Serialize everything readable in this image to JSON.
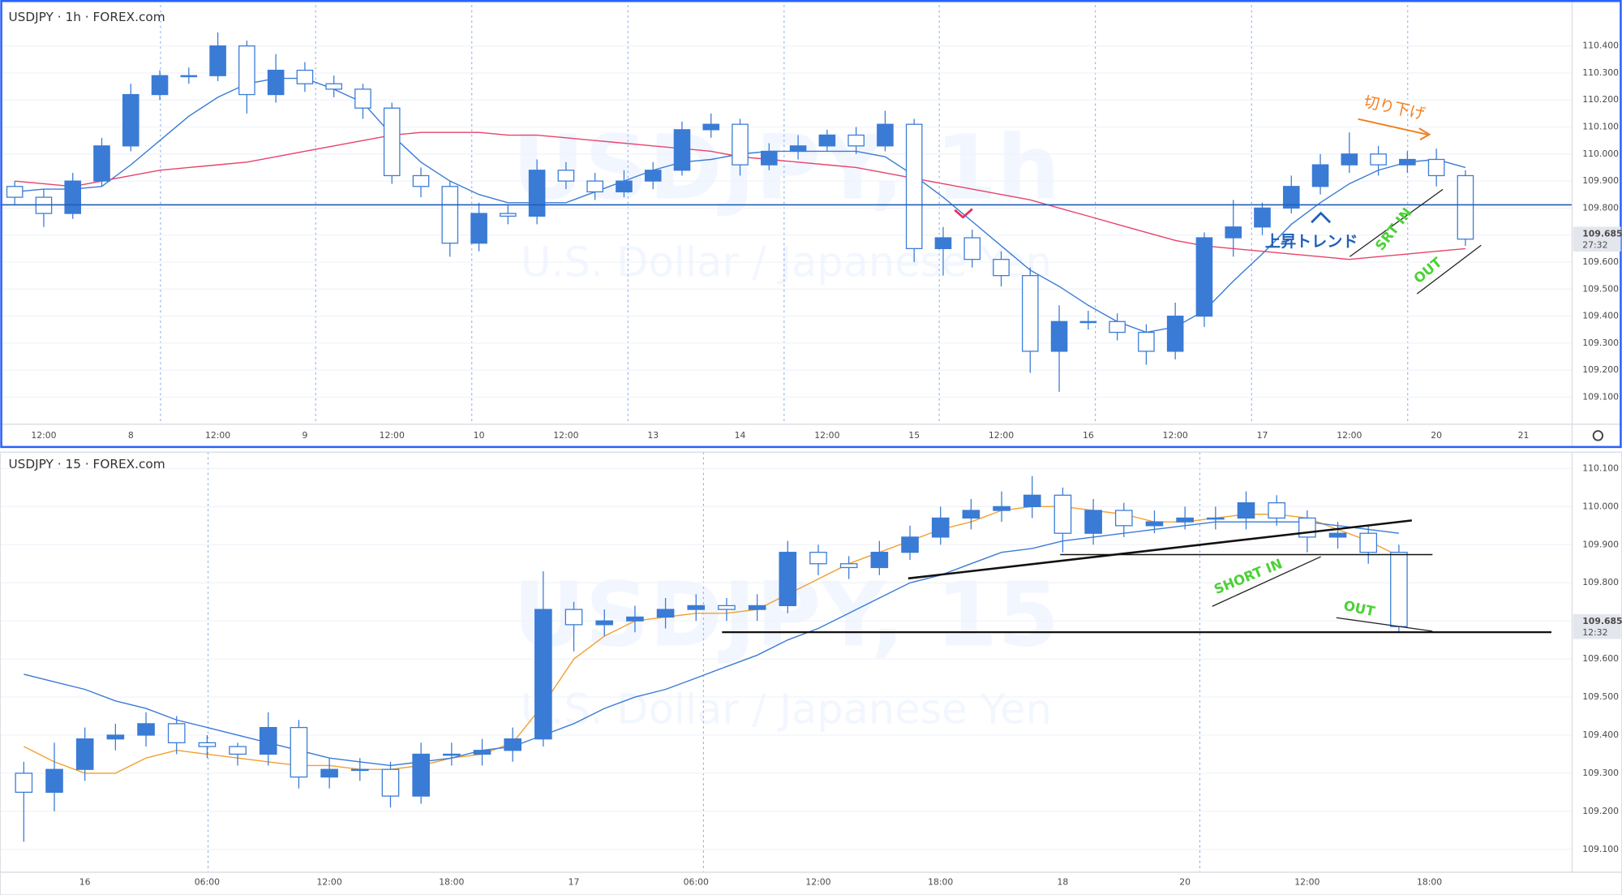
{
  "chart_data": [
    {
      "type": "candlestick",
      "title": "USDJPY · 1h · FOREX.com",
      "watermark": "USDJPY, 1h",
      "watermark_subtitle": "U.S. Dollar / Japanese Yen",
      "annotations": [
        "切り下げ",
        "上昇トレンド",
        "SRT IN",
        "OUT"
      ],
      "price_label": "109.685",
      "countdown": "27:32",
      "categories": [
        null,
        "12:00",
        null,
        null,
        "8",
        null,
        null,
        "12:00",
        null,
        null,
        "9",
        null,
        null,
        "12:00",
        null,
        null,
        "10",
        null,
        null,
        "12:00",
        null,
        null,
        "13",
        null,
        null,
        "14",
        null,
        null,
        "12:00",
        null,
        null,
        "15",
        null,
        null,
        "12:00",
        null,
        null,
        "16",
        null,
        null,
        "12:00",
        null,
        null,
        "17",
        null,
        null,
        "12:00",
        null,
        null,
        "20",
        null,
        null,
        "21",
        null
      ],
      "open": [
        109.88,
        109.84,
        109.78,
        109.9,
        110.03,
        110.22,
        110.29,
        110.29,
        110.4,
        110.22,
        110.31,
        110.26,
        110.24,
        110.17,
        109.92,
        109.88,
        109.67,
        109.78,
        109.77,
        109.94,
        109.9,
        109.86,
        109.9,
        109.94,
        110.09,
        110.11,
        109.96,
        110.01,
        110.03,
        110.07,
        110.03,
        110.11,
        109.65,
        109.69,
        109.61,
        109.55,
        109.27,
        109.38,
        109.38,
        109.34,
        109.27,
        109.4,
        109.69,
        109.73,
        109.8,
        109.88,
        109.96,
        110.0,
        109.96,
        109.98,
        109.92,
        null,
        null,
        null
      ],
      "high": [
        109.9,
        109.87,
        109.93,
        110.06,
        110.26,
        110.31,
        110.32,
        110.45,
        110.42,
        110.37,
        110.34,
        110.29,
        110.26,
        110.19,
        109.95,
        109.9,
        109.82,
        109.81,
        109.98,
        109.97,
        109.93,
        109.94,
        109.97,
        110.12,
        110.15,
        110.13,
        110.04,
        110.07,
        110.09,
        110.1,
        110.16,
        110.13,
        109.73,
        109.72,
        109.64,
        109.58,
        109.44,
        109.42,
        109.41,
        109.37,
        109.45,
        109.71,
        109.83,
        109.82,
        109.92,
        110.0,
        110.08,
        110.03,
        110.01,
        110.02,
        109.94,
        null,
        null,
        null
      ],
      "low": [
        109.81,
        109.73,
        109.76,
        109.88,
        110.01,
        110.2,
        110.26,
        110.27,
        110.15,
        110.19,
        110.23,
        110.21,
        110.13,
        109.89,
        109.84,
        109.62,
        109.64,
        109.74,
        109.74,
        109.87,
        109.83,
        109.84,
        109.87,
        109.92,
        110.06,
        109.92,
        109.94,
        109.98,
        110.01,
        110.0,
        110.01,
        109.6,
        109.55,
        109.58,
        109.51,
        109.19,
        109.12,
        109.35,
        109.31,
        109.22,
        109.24,
        109.36,
        109.62,
        109.7,
        109.78,
        109.85,
        109.93,
        109.92,
        109.93,
        109.88,
        109.66,
        null,
        null,
        null
      ],
      "close": [
        109.84,
        109.78,
        109.9,
        110.03,
        110.22,
        110.29,
        110.29,
        110.4,
        110.22,
        110.31,
        110.26,
        110.24,
        110.17,
        109.92,
        109.88,
        109.67,
        109.78,
        109.77,
        109.94,
        109.9,
        109.86,
        109.9,
        109.94,
        110.09,
        110.11,
        109.96,
        110.01,
        110.03,
        110.07,
        110.03,
        110.11,
        109.65,
        109.69,
        109.61,
        109.55,
        109.27,
        109.38,
        109.38,
        109.34,
        109.27,
        109.4,
        109.69,
        109.73,
        109.8,
        109.88,
        109.96,
        110.0,
        109.96,
        109.98,
        109.92,
        109.685,
        null,
        null,
        null
      ],
      "lines": [
        {
          "color": "#3a7bd5",
          "values": [
            109.86,
            109.87,
            109.87,
            109.88,
            109.96,
            110.05,
            110.14,
            110.21,
            110.26,
            110.28,
            110.28,
            110.24,
            110.19,
            110.07,
            109.97,
            109.9,
            109.85,
            109.82,
            109.82,
            109.82,
            109.86,
            109.9,
            109.94,
            109.97,
            109.98,
            110.0,
            110.01,
            110.01,
            110.01,
            110.01,
            109.99,
            109.92,
            109.84,
            109.75,
            109.66,
            109.57,
            109.51,
            109.44,
            109.38,
            109.34,
            109.36,
            109.42,
            109.53,
            109.63,
            109.74,
            109.82,
            109.89,
            109.94,
            109.97,
            109.98,
            109.95,
            null,
            null,
            null
          ]
        },
        {
          "color": "#e8436a",
          "values": [
            109.9,
            109.89,
            109.88,
            109.9,
            109.92,
            109.94,
            109.95,
            109.96,
            109.97,
            109.99,
            110.01,
            110.03,
            110.05,
            110.07,
            110.08,
            110.08,
            110.08,
            110.07,
            110.07,
            110.06,
            110.05,
            110.04,
            110.03,
            110.02,
            110.01,
            109.99,
            109.98,
            109.97,
            109.96,
            109.95,
            109.93,
            109.91,
            109.89,
            109.87,
            109.85,
            109.83,
            109.8,
            109.77,
            109.74,
            109.71,
            109.68,
            109.66,
            109.65,
            109.64,
            109.63,
            109.62,
            109.61,
            109.62,
            109.63,
            109.64,
            109.65,
            null,
            null,
            null
          ]
        }
      ],
      "up_color": "#3a7bd5",
      "down_color": "#ffffff",
      "wick_color": "#3a7bd5",
      "ylim": [
        109.0,
        110.57
      ],
      "yticks": [
        {
          "value": 109.1,
          "label": "109.100"
        },
        {
          "value": 109.2,
          "label": "109.200"
        },
        {
          "value": 109.3,
          "label": "109.300"
        },
        {
          "value": 109.4,
          "label": "109.400"
        },
        {
          "value": 109.5,
          "label": "109.500"
        },
        {
          "value": 109.6,
          "label": "109.600"
        },
        {
          "value": 109.7,
          "label": "109.700"
        },
        {
          "value": 109.8,
          "label": "109.800"
        },
        {
          "value": 109.9,
          "label": "109.900"
        },
        {
          "value": 110.0,
          "label": "110.000"
        },
        {
          "value": 110.1,
          "label": "110.100"
        },
        {
          "value": 110.2,
          "label": "110.200"
        },
        {
          "value": 110.3,
          "label": "110.300"
        },
        {
          "value": 110.4,
          "label": "110.400"
        }
      ],
      "grid": true
    },
    {
      "type": "candlestick",
      "title": "USDJPY · 15 · FOREX.com",
      "watermark": "USDJPY, 15",
      "watermark_subtitle": "U.S. Dollar / Japanese Yen",
      "annotations": [
        "SHORT IN",
        "OUT"
      ],
      "price_label": "109.685",
      "countdown": "12:32",
      "categories": [
        null,
        null,
        "16",
        null,
        null,
        null,
        "06:00",
        null,
        null,
        null,
        "12:00",
        null,
        null,
        null,
        "18:00",
        null,
        null,
        null,
        "17",
        null,
        null,
        null,
        "06:00",
        null,
        null,
        null,
        "12:00",
        null,
        null,
        null,
        "18:00",
        null,
        null,
        null,
        "18",
        null,
        null,
        null,
        "20",
        null,
        null,
        null,
        "12:00",
        null,
        null,
        null,
        "18:00",
        null,
        null,
        null,
        null
      ],
      "open": [
        109.3,
        109.25,
        109.31,
        109.39,
        109.4,
        109.43,
        109.38,
        109.37,
        109.35,
        109.42,
        109.29,
        109.31,
        109.31,
        109.24,
        109.35,
        109.35,
        109.36,
        109.39,
        109.73,
        109.69,
        109.7,
        109.71,
        109.73,
        109.74,
        109.73,
        109.74,
        109.88,
        109.85,
        109.84,
        109.88,
        109.92,
        109.97,
        109.99,
        110.0,
        110.03,
        109.93,
        109.99,
        109.95,
        109.96,
        109.97,
        109.97,
        110.01,
        109.97,
        109.92,
        109.93,
        109.88,
        null,
        null,
        null,
        null,
        null
      ],
      "high": [
        109.33,
        109.38,
        109.42,
        109.43,
        109.46,
        109.45,
        109.4,
        109.38,
        109.46,
        109.44,
        109.34,
        109.34,
        109.33,
        109.38,
        109.38,
        109.39,
        109.42,
        109.83,
        109.75,
        109.73,
        109.74,
        109.76,
        109.77,
        109.76,
        109.77,
        109.91,
        109.9,
        109.87,
        109.91,
        109.95,
        110.0,
        110.02,
        110.04,
        110.08,
        110.05,
        110.02,
        110.01,
        109.99,
        110.0,
        110.0,
        110.04,
        110.03,
        109.99,
        109.96,
        109.95,
        109.9,
        null,
        null,
        null,
        null,
        null
      ],
      "low": [
        109.12,
        109.2,
        109.28,
        109.36,
        109.37,
        109.35,
        109.34,
        109.32,
        109.32,
        109.26,
        109.26,
        109.28,
        109.21,
        109.22,
        109.32,
        109.32,
        109.33,
        109.37,
        109.62,
        109.66,
        109.67,
        109.68,
        109.7,
        109.7,
        109.7,
        109.72,
        109.82,
        109.81,
        109.82,
        109.86,
        109.9,
        109.94,
        109.96,
        109.97,
        109.88,
        109.9,
        109.92,
        109.93,
        109.94,
        109.94,
        109.94,
        109.95,
        109.88,
        109.89,
        109.85,
        109.67,
        null,
        null,
        null,
        null,
        null
      ],
      "close": [
        109.25,
        109.31,
        109.39,
        109.4,
        109.43,
        109.38,
        109.37,
        109.35,
        109.42,
        109.29,
        109.31,
        109.31,
        109.24,
        109.35,
        109.35,
        109.36,
        109.39,
        109.73,
        109.69,
        109.7,
        109.71,
        109.73,
        109.74,
        109.73,
        109.74,
        109.88,
        109.85,
        109.84,
        109.88,
        109.92,
        109.97,
        109.99,
        110.0,
        110.03,
        109.93,
        109.99,
        109.95,
        109.96,
        109.97,
        109.97,
        110.01,
        109.97,
        109.92,
        109.93,
        109.88,
        109.685,
        null,
        null,
        null,
        null,
        null
      ],
      "lines": [
        {
          "color": "#f0a030",
          "values": [
            109.37,
            109.33,
            109.3,
            109.3,
            109.34,
            109.36,
            109.35,
            109.34,
            109.33,
            109.32,
            109.32,
            109.31,
            109.31,
            109.32,
            109.34,
            109.35,
            109.38,
            109.48,
            109.6,
            109.66,
            109.7,
            109.71,
            109.72,
            109.72,
            109.73,
            109.77,
            109.81,
            109.85,
            109.88,
            109.91,
            109.94,
            109.96,
            109.99,
            110.0,
            110.0,
            109.99,
            109.98,
            109.96,
            109.96,
            109.97,
            109.98,
            109.98,
            109.97,
            109.94,
            109.91,
            109.87,
            null,
            null,
            null,
            null,
            null
          ]
        },
        {
          "color": "#3a7bd5",
          "values": [
            109.56,
            109.54,
            109.52,
            109.49,
            109.47,
            109.44,
            109.42,
            109.4,
            109.38,
            109.36,
            109.34,
            109.33,
            109.32,
            109.33,
            109.34,
            109.36,
            109.37,
            109.4,
            109.43,
            109.47,
            109.5,
            109.52,
            109.55,
            109.58,
            109.61,
            109.65,
            109.68,
            109.72,
            109.76,
            109.8,
            109.82,
            109.85,
            109.88,
            109.89,
            109.91,
            109.92,
            109.93,
            109.94,
            109.95,
            109.96,
            109.96,
            109.96,
            109.96,
            109.95,
            109.94,
            109.93,
            null,
            null,
            null,
            null,
            null
          ]
        }
      ],
      "up_color": "#3a7bd5",
      "down_color": "#ffffff",
      "wick_color": "#3a7bd5",
      "ylim": [
        109.04,
        110.143
      ],
      "yticks": [
        {
          "value": 109.1,
          "label": "109.100"
        },
        {
          "value": 109.2,
          "label": "109.200"
        },
        {
          "value": 109.3,
          "label": "109.300"
        },
        {
          "value": 109.4,
          "label": "109.400"
        },
        {
          "value": 109.5,
          "label": "109.500"
        },
        {
          "value": 109.6,
          "label": "109.600"
        },
        {
          "value": 109.7,
          "label": "109.700"
        },
        {
          "value": 109.8,
          "label": "109.800"
        },
        {
          "value": 109.9,
          "label": "109.900"
        },
        {
          "value": 110.0,
          "label": "110.000"
        },
        {
          "value": 110.1,
          "label": "110.100"
        }
      ],
      "grid": true
    }
  ]
}
